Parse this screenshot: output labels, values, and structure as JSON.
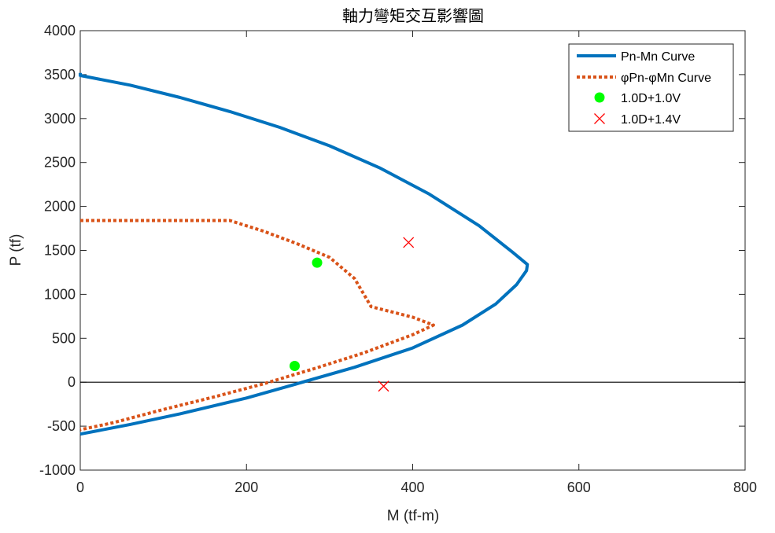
{
  "chart_data": {
    "type": "line",
    "title": "軸力彎矩交互影響圖",
    "xlabel": "M (tf-m)",
    "ylabel": "P (tf)",
    "xlim": [
      0,
      800
    ],
    "ylim": [
      -1000,
      4000
    ],
    "xticks": [
      "0",
      "200",
      "400",
      "600",
      "800"
    ],
    "yticks": [
      "-1000",
      "-500",
      "0",
      "500",
      "1000",
      "1500",
      "2000",
      "2500",
      "3000",
      "3500",
      "4000"
    ],
    "grid": false,
    "legend_position": "top-right",
    "zero_line": true,
    "series": [
      {
        "name": "Pn-Mn Curve",
        "style": "solid",
        "color": "#0072BD",
        "x": [
          0,
          0,
          60,
          120,
          180,
          240,
          300,
          360,
          420,
          480,
          520,
          538,
          537,
          525,
          500,
          460,
          400,
          330,
          260,
          200,
          120,
          60,
          0
        ],
        "y": [
          3520,
          3490,
          3380,
          3240,
          3080,
          2900,
          2690,
          2440,
          2140,
          1780,
          1480,
          1340,
          1270,
          1110,
          890,
          650,
          390,
          170,
          -20,
          -180,
          -360,
          -480,
          -590
        ]
      },
      {
        "name": "φPn-φMn Curve",
        "style": "dotted",
        "color": "#D95319",
        "x": [
          0,
          100,
          180,
          220,
          260,
          300,
          330,
          350,
          400,
          425,
          400,
          340,
          280,
          220,
          160,
          100,
          40,
          0
        ],
        "y": [
          1840,
          1840,
          1840,
          1720,
          1580,
          1420,
          1180,
          860,
          740,
          650,
          540,
          330,
          150,
          -20,
          -170,
          -310,
          -460,
          -540
        ]
      },
      {
        "name": "1.0D+1.0V",
        "style": "marker-circle",
        "color": "#00FF00",
        "x": [
          285,
          258
        ],
        "y": [
          1360,
          185
        ]
      },
      {
        "name": "1.0D+1.4V",
        "style": "marker-x",
        "color": "#FF0000",
        "x": [
          395,
          365
        ],
        "y": [
          1590,
          -45
        ]
      }
    ]
  }
}
